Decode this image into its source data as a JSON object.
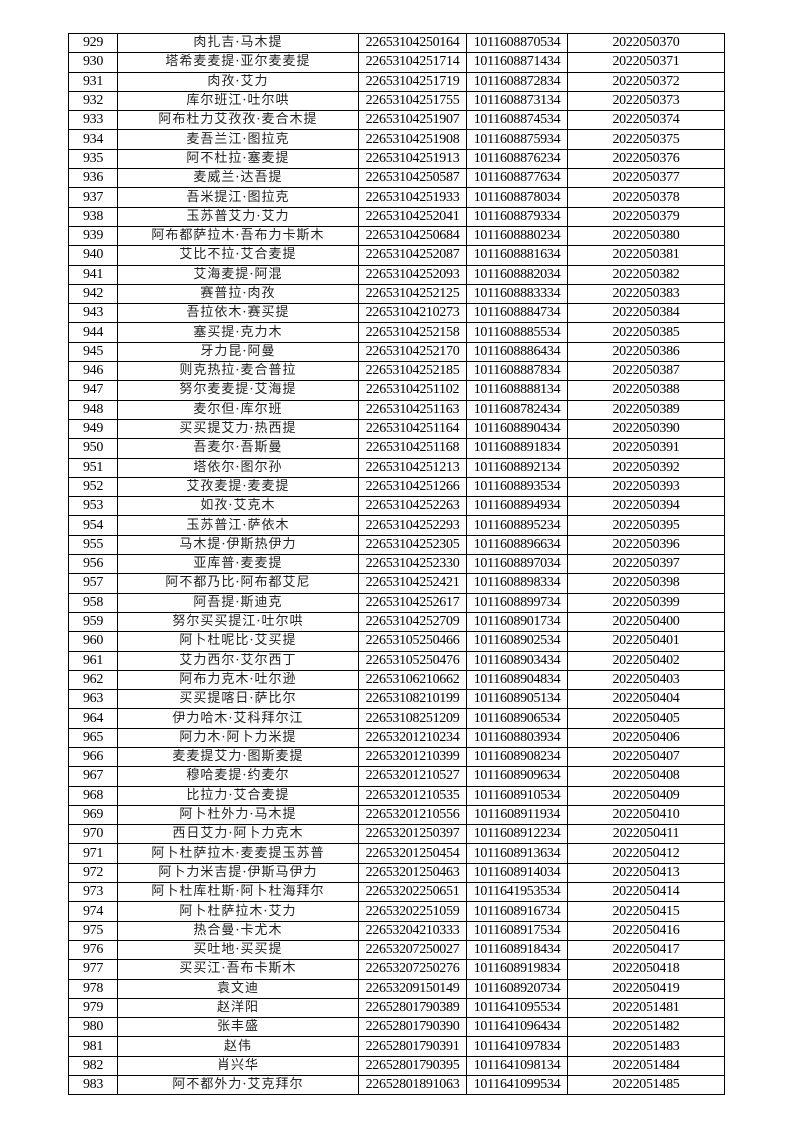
{
  "rows": [
    [
      "929",
      "肉扎吉·马木提",
      "22653104250164",
      "1011608870534",
      "2022050370"
    ],
    [
      "930",
      "塔希麦麦提·亚尔麦麦提",
      "22653104251714",
      "1011608871434",
      "2022050371"
    ],
    [
      "931",
      "肉孜·艾力",
      "22653104251719",
      "1011608872834",
      "2022050372"
    ],
    [
      "932",
      "库尔班江·吐尔哄",
      "22653104251755",
      "1011608873134",
      "2022050373"
    ],
    [
      "933",
      "阿布杜力艾孜孜·麦合木提",
      "22653104251907",
      "1011608874534",
      "2022050374"
    ],
    [
      "934",
      "麦吾兰江·图拉克",
      "22653104251908",
      "1011608875934",
      "2022050375"
    ],
    [
      "935",
      "阿不杜拉·塞麦提",
      "22653104251913",
      "1011608876234",
      "2022050376"
    ],
    [
      "936",
      "麦威兰·达吾提",
      "22653104250587",
      "1011608877634",
      "2022050377"
    ],
    [
      "937",
      "吾米提江·图拉克",
      "22653104251933",
      "1011608878034",
      "2022050378"
    ],
    [
      "938",
      "玉苏普艾力·艾力",
      "22653104252041",
      "1011608879334",
      "2022050379"
    ],
    [
      "939",
      "阿布都萨拉木·吾布力卡斯木",
      "22653104250684",
      "1011608880234",
      "2022050380"
    ],
    [
      "940",
      "艾比不拉·艾合麦提",
      "22653104252087",
      "1011608881634",
      "2022050381"
    ],
    [
      "941",
      "艾海麦提·阿混",
      "22653104252093",
      "1011608882034",
      "2022050382"
    ],
    [
      "942",
      "赛普拉·肉孜",
      "22653104252125",
      "1011608883334",
      "2022050383"
    ],
    [
      "943",
      "吾拉依木·赛买提",
      "22653104210273",
      "1011608884734",
      "2022050384"
    ],
    [
      "944",
      "塞买提·克力木",
      "22653104252158",
      "1011608885534",
      "2022050385"
    ],
    [
      "945",
      "牙力昆·阿曼",
      "22653104252170",
      "1011608886434",
      "2022050386"
    ],
    [
      "946",
      "则克热拉·麦合普拉",
      "22653104252185",
      "1011608887834",
      "2022050387"
    ],
    [
      "947",
      "努尔麦麦提·艾海提",
      "22653104251102",
      "1011608888134",
      "2022050388"
    ],
    [
      "948",
      "麦尔但·库尔班",
      "22653104251163",
      "1011608782434",
      "2022050389"
    ],
    [
      "949",
      "买买提艾力·热西提",
      "22653104251164",
      "1011608890434",
      "2022050390"
    ],
    [
      "950",
      "吾麦尔·吾斯曼",
      "22653104251168",
      "1011608891834",
      "2022050391"
    ],
    [
      "951",
      "塔依尔·图尔孙",
      "22653104251213",
      "1011608892134",
      "2022050392"
    ],
    [
      "952",
      "艾孜麦提·麦麦提",
      "22653104251266",
      "1011608893534",
      "2022050393"
    ],
    [
      "953",
      "如孜·艾克木",
      "22653104252263",
      "1011608894934",
      "2022050394"
    ],
    [
      "954",
      "玉苏普江·萨依木",
      "22653104252293",
      "1011608895234",
      "2022050395"
    ],
    [
      "955",
      "马木提·伊斯热伊力",
      "22653104252305",
      "1011608896634",
      "2022050396"
    ],
    [
      "956",
      "亚库普·麦麦提",
      "22653104252330",
      "1011608897034",
      "2022050397"
    ],
    [
      "957",
      "阿不都乃比·阿布都艾尼",
      "22653104252421",
      "1011608898334",
      "2022050398"
    ],
    [
      "958",
      "阿吾提·斯迪克",
      "22653104252617",
      "1011608899734",
      "2022050399"
    ],
    [
      "959",
      "努尔买买提江·吐尔哄",
      "22653104252709",
      "1011608901734",
      "2022050400"
    ],
    [
      "960",
      "阿卜杜呢比·艾买提",
      "22653105250466",
      "1011608902534",
      "2022050401"
    ],
    [
      "961",
      "艾力西尔·艾尔西丁",
      "22653105250476",
      "1011608903434",
      "2022050402"
    ],
    [
      "962",
      "阿布力克木·吐尔逊",
      "22653106210662",
      "1011608904834",
      "2022050403"
    ],
    [
      "963",
      "买买提喀日·萨比尔",
      "22653108210199",
      "1011608905134",
      "2022050404"
    ],
    [
      "964",
      "伊力哈木·艾科拜尔江",
      "22653108251209",
      "1011608906534",
      "2022050405"
    ],
    [
      "965",
      "阿力木·阿卜力米提",
      "22653201210234",
      "1011608803934",
      "2022050406"
    ],
    [
      "966",
      "麦麦提艾力·图斯麦提",
      "22653201210399",
      "1011608908234",
      "2022050407"
    ],
    [
      "967",
      "穆哈麦提·约麦尔",
      "22653201210527",
      "1011608909634",
      "2022050408"
    ],
    [
      "968",
      "比拉力·艾合麦提",
      "22653201210535",
      "1011608910534",
      "2022050409"
    ],
    [
      "969",
      "阿卜杜外力·马木提",
      "22653201210556",
      "1011608911934",
      "2022050410"
    ],
    [
      "970",
      "西日艾力·阿卜力克木",
      "22653201250397",
      "1011608912234",
      "2022050411"
    ],
    [
      "971",
      "阿卜杜萨拉木·麦麦提玉苏普",
      "22653201250454",
      "1011608913634",
      "2022050412"
    ],
    [
      "972",
      "阿卜力米吉提·伊斯马伊力",
      "22653201250463",
      "1011608914034",
      "2022050413"
    ],
    [
      "973",
      "阿卜杜库杜斯·阿卜杜海拜尔",
      "22653202250651",
      "1011641953534",
      "2022050414"
    ],
    [
      "974",
      "阿卜杜萨拉木·艾力",
      "22653202251059",
      "1011608916734",
      "2022050415"
    ],
    [
      "975",
      "热合曼·卡尤木",
      "22653204210333",
      "1011608917534",
      "2022050416"
    ],
    [
      "976",
      "买吐地·买买提",
      "22653207250027",
      "1011608918434",
      "2022050417"
    ],
    [
      "977",
      "买买江·吾布卡斯木",
      "22653207250276",
      "1011608919834",
      "2022050418"
    ],
    [
      "978",
      "袁文迪",
      "22653209150149",
      "1011608920734",
      "2022050419"
    ],
    [
      "979",
      "赵洋阳",
      "22652801790389",
      "1011641095534",
      "2022051481"
    ],
    [
      "980",
      "张丰盛",
      "22652801790390",
      "1011641096434",
      "2022051482"
    ],
    [
      "981",
      "赵伟",
      "22652801790391",
      "1011641097834",
      "2022051483"
    ],
    [
      "982",
      "肖兴华",
      "22652801790395",
      "1011641098134",
      "2022051484"
    ],
    [
      "983",
      "阿不都外力·艾克拜尔",
      "22652801891063",
      "1011641099534",
      "2022051485"
    ]
  ]
}
